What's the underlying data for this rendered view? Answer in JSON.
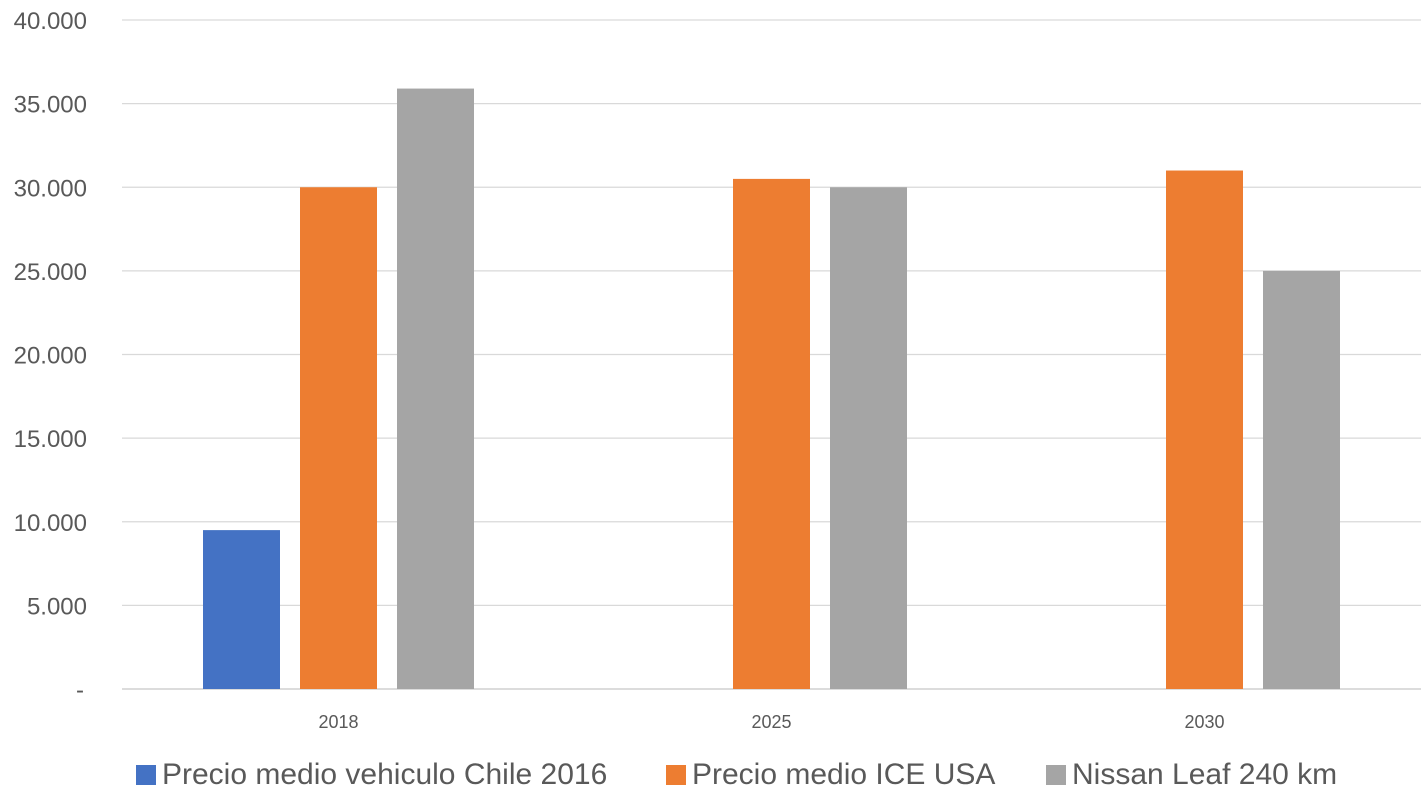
{
  "chart_data": {
    "type": "bar",
    "title": "",
    "xlabel": "",
    "ylabel": "",
    "categories": [
      "2018",
      "2025",
      "2030"
    ],
    "series": [
      {
        "name": "Precio medio vehiculo Chile 2016",
        "color": "#4472C4",
        "values": [
          9500,
          null,
          null
        ]
      },
      {
        "name": "Precio medio ICE USA",
        "color": "#ED7D31",
        "values": [
          30000,
          30500,
          31000
        ]
      },
      {
        "name": "Nissan Leaf 240 km",
        "color": "#A5A5A5",
        "values": [
          35900,
          30000,
          25000
        ]
      }
    ],
    "ylim": [
      0,
      40000
    ],
    "yticks": [
      0,
      5000,
      10000,
      15000,
      20000,
      25000,
      30000,
      35000,
      40000
    ],
    "ytick_labels": [
      "-",
      "5.000",
      "10.000",
      "15.000",
      "20.000",
      "25.000",
      "30.000",
      "35.000",
      "40.000"
    ],
    "grid": true,
    "legend_position": "bottom"
  }
}
